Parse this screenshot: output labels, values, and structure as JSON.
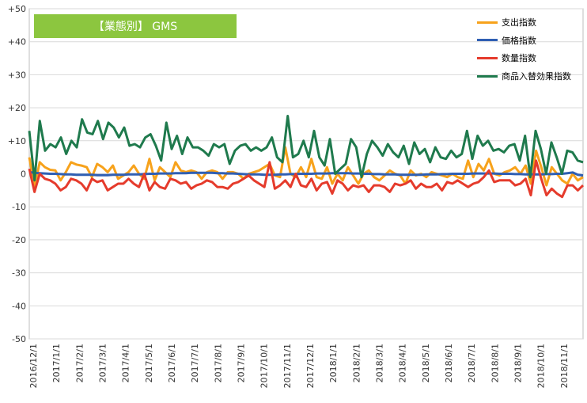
{
  "chart_data": {
    "type": "line",
    "title": "【業態別】 GMS",
    "title_bg": "#8cc63f",
    "y_ticks": [
      "+50",
      "+40",
      "+30",
      "+20",
      "+10",
      "0",
      "-10",
      "-20",
      "-30",
      "-40",
      "-50"
    ],
    "ylim": [
      -50,
      50
    ],
    "x_ticks": [
      "2016/12/1",
      "2017/1/1",
      "2017/2/1",
      "2017/3/1",
      "2017/4/1",
      "2017/5/1",
      "2017/6/1",
      "2017/7/1",
      "2017/8/1",
      "2017/9/1",
      "2017/10/1",
      "2017/11/1",
      "2017/12/1",
      "2018/1/1",
      "2018/2/1",
      "2018/3/1",
      "2018/4/1",
      "2018/5/1",
      "2018/6/1",
      "2018/7/1",
      "2018/8/1",
      "2018/9/1",
      "2018/10/1",
      "2018/11/1"
    ],
    "legend_position": "top-right",
    "grid": true,
    "series": [
      {
        "name": "支出指数",
        "color": "#f7a21b",
        "values": [
          5,
          -4,
          3.5,
          2,
          1.2,
          1,
          -2,
          0.5,
          3.5,
          2.8,
          2.5,
          2,
          -1,
          3,
          2,
          0.5,
          2.5,
          -1.5,
          -0.5,
          0.5,
          2.5,
          0,
          -1.5,
          4.5,
          -2,
          2,
          0.5,
          -1,
          3.5,
          1,
          0.5,
          1,
          0.5,
          -1.5,
          0.5,
          1,
          0.5,
          -1.5,
          0.5,
          0.5,
          0,
          -1.5,
          0,
          0.5,
          1,
          2,
          3,
          -0.5,
          -1,
          8,
          0,
          -1,
          2,
          -1,
          4.5,
          -1,
          -1.5,
          2,
          -3,
          0,
          -2,
          2,
          -0.5,
          -3,
          0,
          1,
          -1,
          -2,
          -0.5,
          1,
          0,
          -0.5,
          -3,
          1,
          -0.5,
          0,
          -1,
          0.5,
          0,
          -0.5,
          -1,
          0,
          -1,
          -1.5,
          4,
          -1,
          3,
          1,
          4.5,
          0,
          -0.5,
          0.5,
          1,
          2,
          0,
          2.5,
          -3,
          7,
          2,
          -3.5,
          2,
          0,
          -2,
          -3,
          0,
          -2,
          -1
        ]
      },
      {
        "name": "価格指数",
        "color": "#2f5fb3",
        "values": [
          0.5,
          0.3,
          0.2,
          0.1,
          0,
          0,
          -0.1,
          -0.2,
          -0.2,
          -0.3,
          -0.3,
          -0.3,
          -0.3,
          -0.4,
          -0.4,
          -0.4,
          -0.3,
          -0.3,
          -0.3,
          -0.2,
          -0.2,
          -0.2,
          -0.1,
          0,
          0,
          0.1,
          0.1,
          0.1,
          0.2,
          0.2,
          0.2,
          0.3,
          0.3,
          0.3,
          0.3,
          0.3,
          0.2,
          0.2,
          0.1,
          0.1,
          0,
          -0.1,
          -0.2,
          -0.2,
          -0.2,
          -0.3,
          -0.3,
          -0.3,
          -0.2,
          -0.2,
          -0.1,
          -0.1,
          0,
          0,
          0,
          0.1,
          0.1,
          0.1,
          0.2,
          0.2,
          0.2,
          0.2,
          0.1,
          0.1,
          0,
          0,
          -0.1,
          -0.1,
          -0.2,
          -0.2,
          -0.2,
          -0.3,
          -0.3,
          -0.3,
          -0.3,
          -0.3,
          -0.2,
          -0.2,
          -0.2,
          -0.1,
          -0.1,
          0,
          0,
          0,
          0,
          0.1,
          0.1,
          0.1,
          0.1,
          0.1,
          0,
          0,
          0,
          -0.1,
          -0.1,
          -0.2,
          -0.2,
          -0.2,
          -0.2,
          -0.1,
          -0.1,
          0,
          0,
          0.2,
          0.4,
          -0.3,
          -0.5
        ]
      },
      {
        "name": "数量指数",
        "color": "#e53b2c",
        "values": [
          1.5,
          -5.5,
          0,
          -1.5,
          -2,
          -3,
          -5,
          -4,
          -1.5,
          -2,
          -3,
          -5,
          -1.5,
          -2.5,
          -2,
          -5,
          -4,
          -3,
          -3,
          -1.5,
          -3,
          -4,
          0,
          -5,
          -2.5,
          -4,
          -4.5,
          -1.5,
          -2,
          -3,
          -2.5,
          -4.5,
          -3.5,
          -3,
          -2,
          -2.5,
          -4,
          -4,
          -4.5,
          -3,
          -2.5,
          -1.5,
          -0.5,
          -2,
          -3,
          -4,
          3.5,
          -4.5,
          -3.5,
          -2,
          -4,
          0,
          -3.5,
          -4,
          -1.5,
          -5,
          -3,
          -2.5,
          -6,
          -2,
          -3,
          -5,
          -3.5,
          -4,
          -3.5,
          -5.5,
          -3.5,
          -3.5,
          -4,
          -5.5,
          -3,
          -3.5,
          -3,
          -2,
          -4.5,
          -3,
          -4,
          -4,
          -3,
          -5,
          -2.5,
          -3,
          -2,
          -3,
          -4,
          -3,
          -2.5,
          -1,
          1,
          -2.5,
          -2,
          -2,
          -2,
          -3.5,
          -3,
          -1.5,
          -6.5,
          4,
          -1.5,
          -6.5,
          -4.5,
          -6,
          -7,
          -3.5,
          -3.5,
          -5,
          -3.5
        ]
      },
      {
        "name": "商品入替効果指数",
        "color": "#1f7a4d",
        "values": [
          13,
          -2,
          16,
          7,
          9,
          8,
          11,
          6,
          10,
          8,
          16.5,
          12.5,
          12,
          16,
          10.5,
          15.5,
          14,
          11,
          14,
          8.5,
          9,
          8,
          11,
          12,
          8.5,
          4,
          15.5,
          7.5,
          11.5,
          6,
          11,
          8,
          8,
          7,
          5.5,
          9,
          8,
          9,
          3,
          7,
          8.5,
          9,
          7,
          8,
          7,
          8,
          11,
          5,
          3.5,
          17.5,
          5,
          6,
          10,
          5,
          13,
          5,
          2.5,
          10.5,
          0,
          1.5,
          3,
          10.5,
          8,
          -1,
          6,
          10,
          8,
          5.5,
          9,
          6.5,
          5,
          8.5,
          3,
          9.5,
          6,
          7.5,
          3.5,
          8,
          5,
          4.5,
          7,
          5,
          6,
          13,
          4.5,
          11.5,
          8.5,
          10,
          7,
          7.5,
          6.5,
          8.5,
          9,
          4,
          11.5,
          -1,
          13,
          7.5,
          0,
          9.5,
          5,
          0,
          7,
          6.5,
          4,
          3.5
        ]
      }
    ]
  }
}
